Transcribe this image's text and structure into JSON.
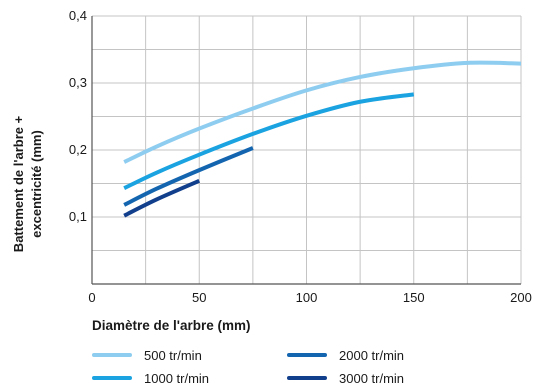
{
  "chart_data": {
    "type": "line",
    "xlabel": "Diamètre de l'arbre (mm)",
    "ylabel_lines": [
      "Battement de l'arbre +",
      "excentricité (mm)"
    ],
    "xlim": [
      0,
      200
    ],
    "ylim": [
      0,
      0.4
    ],
    "x_ticks": [
      "0",
      "50",
      "100",
      "150",
      "200"
    ],
    "y_ticks": [
      "0,1",
      "0,2",
      "0,3",
      "0,4"
    ],
    "grid": true,
    "legend_position": "bottom",
    "series": [
      {
        "name": "500 tr/min",
        "color": "#8ecdf0",
        "x": [
          15,
          30,
          50,
          75,
          100,
          125,
          150,
          175,
          200
        ],
        "y": [
          0.182,
          0.205,
          0.232,
          0.262,
          0.289,
          0.309,
          0.322,
          0.33,
          0.329
        ]
      },
      {
        "name": "1000 tr/min",
        "color": "#1aa3e0",
        "x": [
          15,
          30,
          50,
          75,
          100,
          125,
          150
        ],
        "y": [
          0.143,
          0.166,
          0.193,
          0.224,
          0.251,
          0.272,
          0.283
        ]
      },
      {
        "name": "2000 tr/min",
        "color": "#1465b0",
        "x": [
          15,
          30,
          50,
          75
        ],
        "y": [
          0.118,
          0.142,
          0.17,
          0.203
        ]
      },
      {
        "name": "3000 tr/min",
        "color": "#123f8c",
        "x": [
          15,
          30,
          50
        ],
        "y": [
          0.102,
          0.126,
          0.154
        ]
      }
    ]
  }
}
